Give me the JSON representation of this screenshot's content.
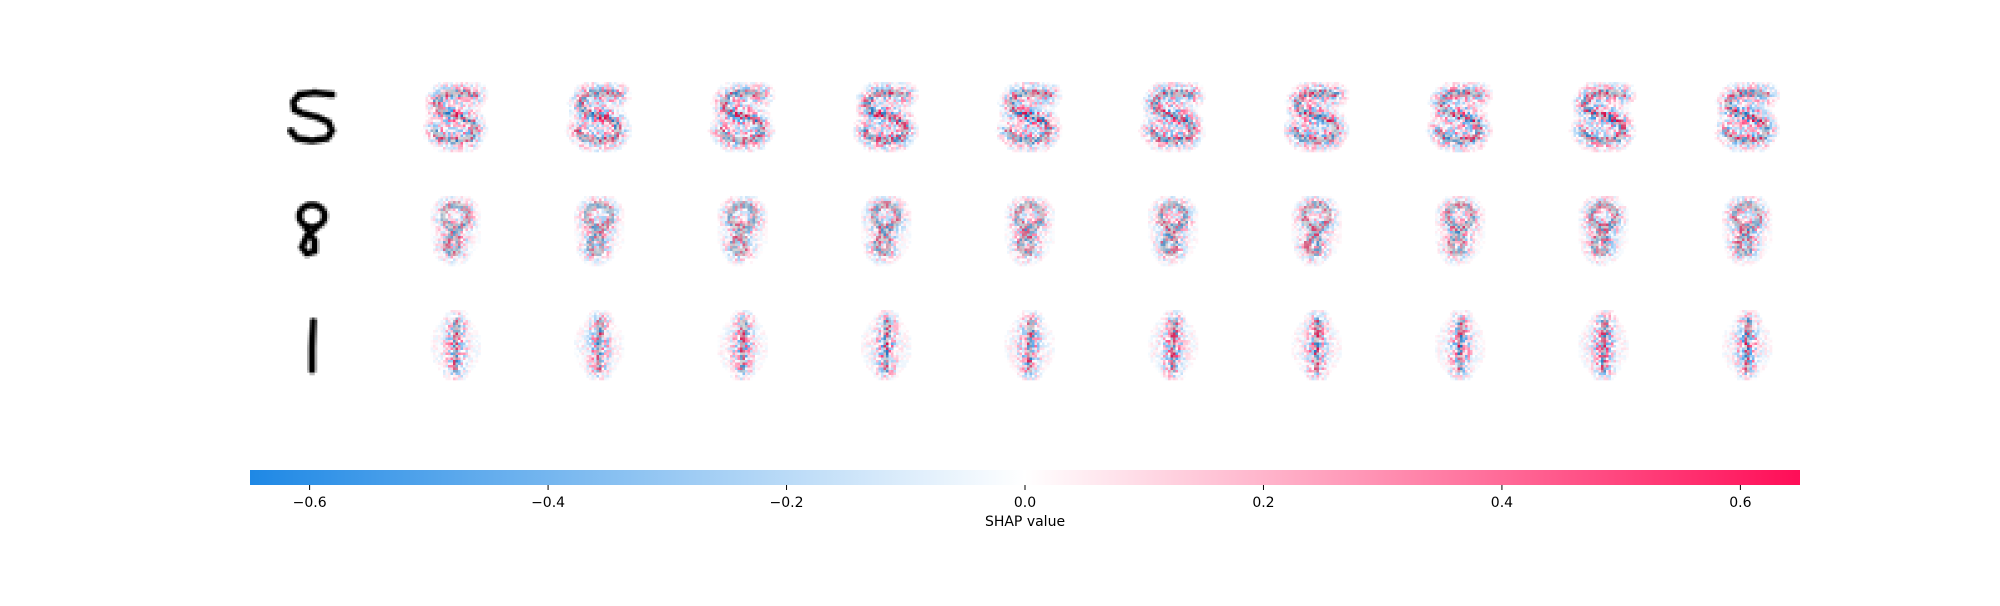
{
  "chart_data": {
    "type": "heatmap",
    "title": "",
    "xlabel": "SHAP value",
    "colorbar": {
      "vmin": -0.65,
      "vmax": 0.65,
      "ticks": [
        -0.6,
        -0.4,
        -0.2,
        0.0,
        0.2,
        0.4,
        0.6
      ],
      "tick_labels": [
        "−0.6",
        "−0.4",
        "−0.2",
        "0.0",
        "0.2",
        "0.4",
        "0.6"
      ],
      "colors": {
        "negative": "#1e88e5",
        "zero": "#ffffff",
        "positive": "#ff0d57"
      }
    },
    "grid": false,
    "rows": [
      {
        "input_digit": "5",
        "shap_maps": 10
      },
      {
        "input_digit": "8",
        "shap_maps": 10
      },
      {
        "input_digit": "1",
        "shap_maps": 10
      }
    ]
  }
}
